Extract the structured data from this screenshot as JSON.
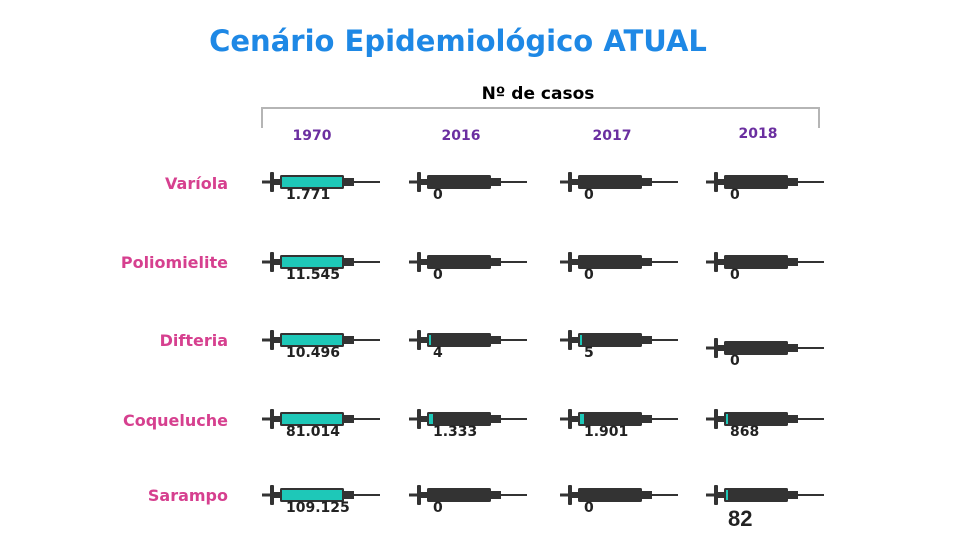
{
  "title": "Cenário Epidemiológico ATUAL",
  "subtitle": "Nº de casos",
  "years": [
    "1970",
    "2016",
    "2017",
    "2018"
  ],
  "diseases": [
    {
      "name": "Varíola",
      "values": [
        "1.771",
        "0",
        "0",
        "0"
      ],
      "fill": [
        1,
        0,
        0,
        0
      ]
    },
    {
      "name": "Poliomielite",
      "values": [
        "11.545",
        "0",
        "0",
        "0"
      ],
      "fill": [
        1,
        0,
        0,
        0
      ]
    },
    {
      "name": "Difteria",
      "values": [
        "10.496",
        "4",
        "5",
        "0"
      ],
      "fill": [
        1,
        0.02,
        0.02,
        0
      ]
    },
    {
      "name": "Coqueluche",
      "values": [
        "81.014",
        "1.333",
        "1.901",
        "868"
      ],
      "fill": [
        1,
        0.07,
        0.06,
        0.03
      ]
    },
    {
      "name": "Sarampo",
      "values": [
        "109.125",
        "0",
        "0",
        ""
      ],
      "fill": [
        1,
        0,
        0,
        0.01
      ]
    }
  ],
  "page_number": "82",
  "colors": {
    "title": "#1e88e5",
    "disease_label": "#d6408f",
    "year_label": "#6b2fa0",
    "syringe_body": "#333333",
    "syringe_fill": "#1ec8b8"
  },
  "icons": {
    "syringe": "syringe-icon"
  }
}
